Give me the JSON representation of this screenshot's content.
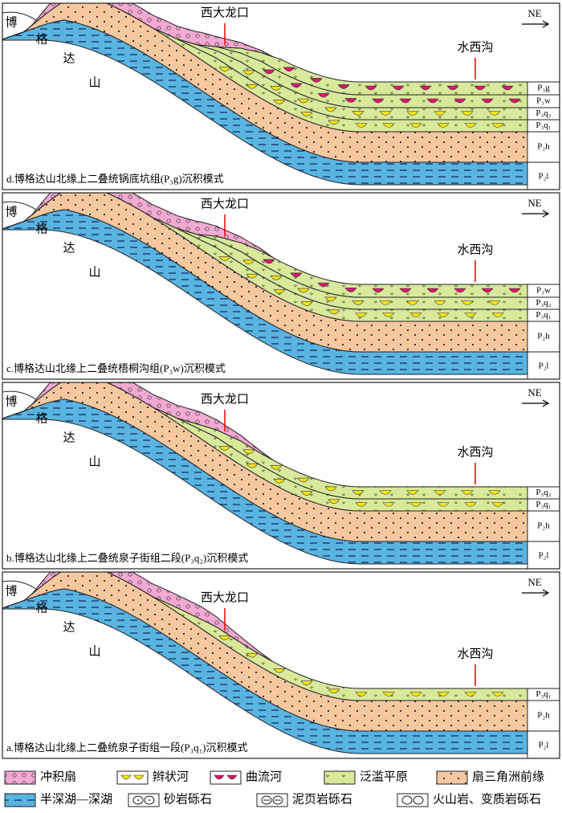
{
  "places": {
    "bo": "博",
    "ge": "格",
    "da": "达",
    "shan": "山",
    "site1": "西大龙口",
    "site2": "水西沟",
    "direction": "NE"
  },
  "panels": [
    {
      "caption": "d.博格达山北缘上二叠统锅底坑组(P₃g)沉积模式",
      "layers": [
        "P₂l",
        "P₂h",
        "P₃q₁",
        "P₃q₂",
        "P₃w",
        "P₃g"
      ]
    },
    {
      "caption": "c.博格达山北缘上二叠统梧桐沟组(P₃w)沉积模式",
      "layers": [
        "P₂l",
        "P₂h",
        "P₃q₁",
        "P₃q₂",
        "P₃w"
      ]
    },
    {
      "caption": "b.博格达山北缘上二叠统泉子街组二段(P₃q₂)沉积模式",
      "layers": [
        "P₂l",
        "P₂h",
        "P₃q₁",
        "P₃q₂"
      ]
    },
    {
      "caption": "a.博格达山北缘上二叠统泉子街组一段(P₃q₁)沉积模式",
      "layers": [
        "P₂l",
        "P₂h",
        "P₃q₁"
      ]
    }
  ],
  "legend": [
    "冲积扇",
    "辫状河",
    "曲流河",
    "泛滥平原",
    "扇三角洲前缘",
    "半深湖—深湖",
    "砂岩砾石",
    "泥页岩砾石",
    "火山岩、变质岩砾石"
  ]
}
